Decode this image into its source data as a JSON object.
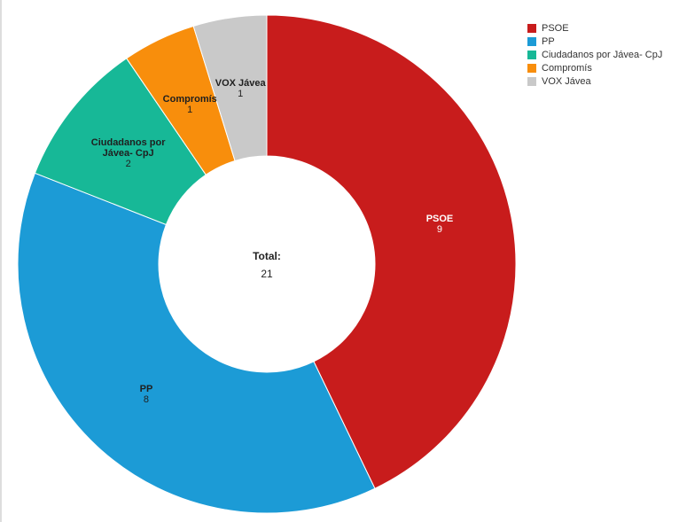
{
  "chart_data": {
    "type": "donut",
    "categories": [
      "PSOE",
      "PP",
      "Ciudadanos por Jávea- CpJ",
      "Compromís",
      "VOX Jávea"
    ],
    "values": [
      9,
      8,
      2,
      1,
      1
    ],
    "colors": [
      "#c81c1c",
      "#1c9bd6",
      "#17b897",
      "#f88e0c",
      "#c9c9c9"
    ],
    "total_label": "Total:",
    "total": 21,
    "legend": "top-right"
  }
}
